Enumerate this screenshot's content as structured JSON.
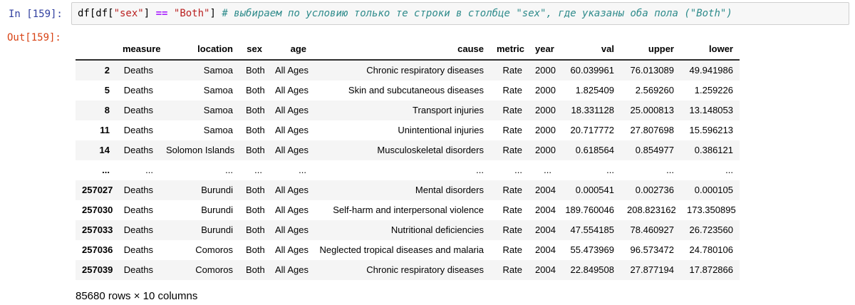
{
  "notebook": {
    "in_prompt": "In [159]:",
    "out_prompt": "Out[159]:",
    "code_tokens": [
      {
        "text": "df[df[",
        "type": "plain"
      },
      {
        "text": "\"sex\"",
        "type": "string"
      },
      {
        "text": "] ",
        "type": "plain"
      },
      {
        "text": "==",
        "type": "operator"
      },
      {
        "text": " ",
        "type": "plain"
      },
      {
        "text": "\"Both\"",
        "type": "string"
      },
      {
        "text": "] ",
        "type": "plain"
      },
      {
        "text": "# выбираем по условию только те строки в столбце \"sex\", где указаны оба пола (\"Both\")",
        "type": "comment"
      }
    ]
  },
  "table": {
    "index_header": "",
    "columns": [
      "measure",
      "location",
      "sex",
      "age",
      "cause",
      "metric",
      "year",
      "val",
      "upper",
      "lower"
    ],
    "rows": [
      {
        "index": "2",
        "cells": [
          "Deaths",
          "Samoa",
          "Both",
          "All Ages",
          "Chronic respiratory diseases",
          "Rate",
          "2000",
          "60.039961",
          "76.013089",
          "49.941986"
        ]
      },
      {
        "index": "5",
        "cells": [
          "Deaths",
          "Samoa",
          "Both",
          "All Ages",
          "Skin and subcutaneous diseases",
          "Rate",
          "2000",
          "1.825409",
          "2.569260",
          "1.259226"
        ]
      },
      {
        "index": "8",
        "cells": [
          "Deaths",
          "Samoa",
          "Both",
          "All Ages",
          "Transport injuries",
          "Rate",
          "2000",
          "18.331128",
          "25.000813",
          "13.148053"
        ]
      },
      {
        "index": "11",
        "cells": [
          "Deaths",
          "Samoa",
          "Both",
          "All Ages",
          "Unintentional injuries",
          "Rate",
          "2000",
          "20.717772",
          "27.807698",
          "15.596213"
        ]
      },
      {
        "index": "14",
        "cells": [
          "Deaths",
          "Solomon Islands",
          "Both",
          "All Ages",
          "Musculoskeletal disorders",
          "Rate",
          "2000",
          "0.618564",
          "0.854977",
          "0.386121"
        ]
      },
      {
        "index": "...",
        "cells": [
          "...",
          "...",
          "...",
          "...",
          "...",
          "...",
          "...",
          "...",
          "...",
          "..."
        ]
      },
      {
        "index": "257027",
        "cells": [
          "Deaths",
          "Burundi",
          "Both",
          "All Ages",
          "Mental disorders",
          "Rate",
          "2004",
          "0.000541",
          "0.002736",
          "0.000105"
        ]
      },
      {
        "index": "257030",
        "cells": [
          "Deaths",
          "Burundi",
          "Both",
          "All Ages",
          "Self-harm and interpersonal violence",
          "Rate",
          "2004",
          "189.760046",
          "208.823162",
          "173.350895"
        ]
      },
      {
        "index": "257033",
        "cells": [
          "Deaths",
          "Burundi",
          "Both",
          "All Ages",
          "Nutritional deficiencies",
          "Rate",
          "2004",
          "47.554185",
          "78.460927",
          "26.723560"
        ]
      },
      {
        "index": "257036",
        "cells": [
          "Deaths",
          "Comoros",
          "Both",
          "All Ages",
          "Neglected tropical diseases and malaria",
          "Rate",
          "2004",
          "55.473969",
          "96.573472",
          "24.780106"
        ]
      },
      {
        "index": "257039",
        "cells": [
          "Deaths",
          "Comoros",
          "Both",
          "All Ages",
          "Chronic respiratory diseases",
          "Rate",
          "2004",
          "22.849508",
          "27.877194",
          "17.872866"
        ]
      }
    ],
    "footer": "85680 rows × 10 columns"
  },
  "colors": {
    "in_prompt": "#303F9F",
    "out_prompt": "#D84315",
    "code_string": "#BA2121",
    "code_operator": "#AA22FF",
    "code_comment": "#2E8B8B",
    "cell_background": "#F7F7F7",
    "cell_border": "#CFCFCF",
    "row_stripe": "#F5F5F5"
  }
}
